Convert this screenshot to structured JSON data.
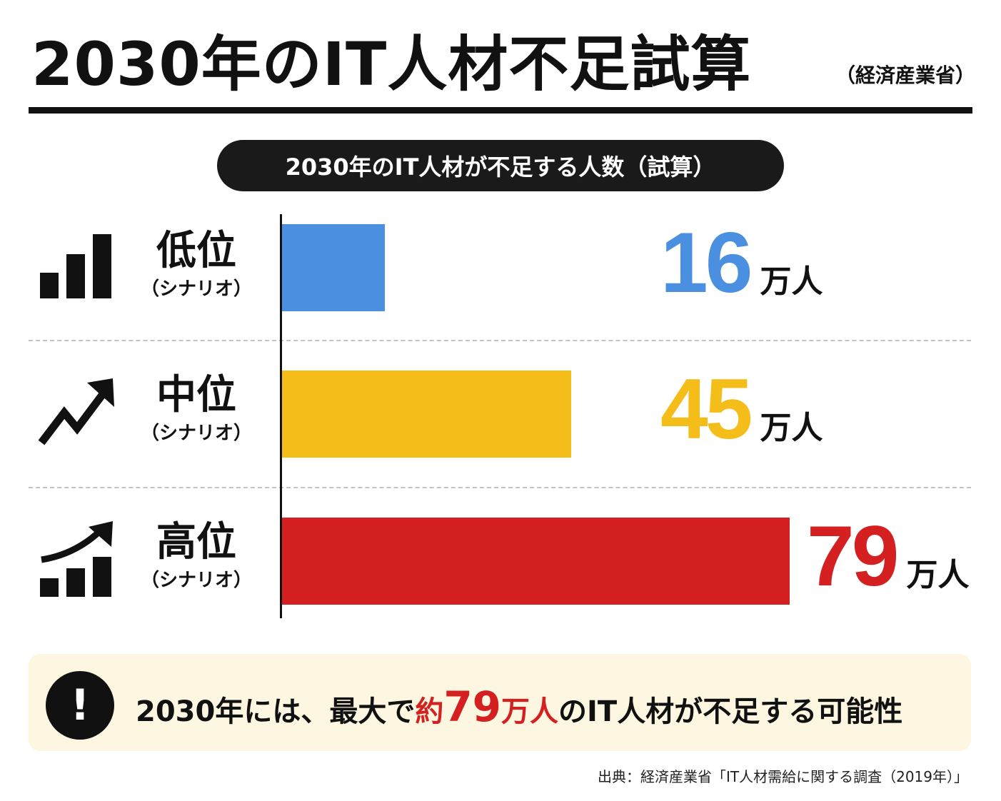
{
  "header": {
    "title": "2030年のIT人材不足試算",
    "subtitle": "（経済産業省）"
  },
  "chart_data": {
    "type": "bar",
    "title": "2030年のIT人材が不足する人数（試算）",
    "orientation": "horizontal",
    "unit": "万人",
    "categories": [
      "低位",
      "中位",
      "高位"
    ],
    "category_sub": [
      "（シナリオ）",
      "（シナリオ）",
      "（シナリオ）"
    ],
    "values": [
      16,
      45,
      79
    ],
    "value_labels": [
      "16",
      "45",
      "79"
    ],
    "colors": [
      "#4a8fe0",
      "#f5bd1a",
      "#d42020"
    ],
    "icons": [
      "bar-chart-icon",
      "trend-up-icon",
      "growth-chart-icon"
    ],
    "xlim": [
      0,
      82
    ],
    "grid": false
  },
  "callout": {
    "icon": "exclamation-icon",
    "text_before": "2030年には、最大で",
    "highlight_prefix": "約",
    "highlight_num": "79",
    "highlight_unit": "万人",
    "text_after": "のIT人材が不足する可能性"
  },
  "source": "出典：経済産業省「IT人材需給に関する調査（2019年）」"
}
